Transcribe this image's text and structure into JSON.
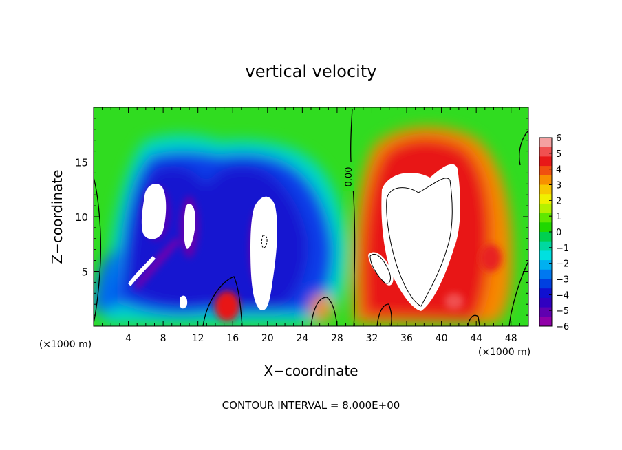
{
  "chart_data": {
    "type": "heatmap",
    "title": "vertical velocity",
    "xlabel": "X−coordinate",
    "ylabel": "Z−coordinate",
    "x_unit_left": "(×1000 m)",
    "x_unit_right": "(×1000 m)",
    "footer": "CONTOUR INTERVAL = 8.000E+00",
    "xlim": [
      0,
      50
    ],
    "ylim": [
      0,
      20
    ],
    "x_ticks": [
      "4",
      "8",
      "12",
      "16",
      "20",
      "24",
      "28",
      "32",
      "36",
      "40",
      "44",
      "48"
    ],
    "y_ticks": [
      "5",
      "10",
      "15"
    ],
    "contour_label": "0.00",
    "colorbar": {
      "range": [
        -6,
        6
      ],
      "tick_labels": [
        "6",
        "5",
        "4",
        "3",
        "2",
        "1",
        "0",
        "−1",
        "−2",
        "−3",
        "−4",
        "−5",
        "−6"
      ],
      "colors": [
        "#f4a0a0",
        "#f05050",
        "#e81818",
        "#f05010",
        "#f89000",
        "#f8c800",
        "#f0f000",
        "#b4f000",
        "#60e800",
        "#20d800",
        "#00d050",
        "#00d8a0",
        "#00e0e0",
        "#00b0f0",
        "#0078f0",
        "#0040e0",
        "#1010d0",
        "#3000c0",
        "#6000b0",
        "#9000a8"
      ]
    },
    "features": [
      {
        "x": 6.5,
        "z": 11.0,
        "value": -7
      },
      {
        "x": 10.8,
        "z": 10.0,
        "value": -7
      },
      {
        "x": 20.0,
        "z": 7.0,
        "value": -7
      },
      {
        "x": 5.0,
        "z": 5.0,
        "value": -7
      },
      {
        "x": 10.5,
        "z": 2.3,
        "value": -6.5
      },
      {
        "x": 38.5,
        "z": 8.0,
        "value": 7
      },
      {
        "x": 35.0,
        "z": 4.5,
        "value": 6.5
      },
      {
        "x": 15.8,
        "z": 1.5,
        "value": 6
      },
      {
        "x": 26.3,
        "z": 1.5,
        "value": 5
      },
      {
        "x": 45.0,
        "z": 6.0,
        "value": 5
      },
      {
        "x": 41.5,
        "z": 2.3,
        "value": 6
      }
    ]
  }
}
